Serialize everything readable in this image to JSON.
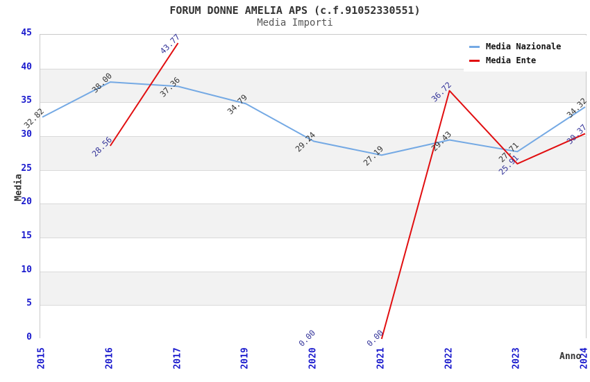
{
  "header": {
    "title": "FORUM DONNE AMELIA APS (c.f.91052330551)",
    "subtitle": "Media Importi"
  },
  "chart_data": {
    "type": "line",
    "title": "FORUM DONNE AMELIA APS (c.f.91052330551)",
    "subtitle": "Media Importi",
    "xlabel": "Anno",
    "ylabel": "Media",
    "ylim": [
      0,
      45
    ],
    "y_ticks": [
      0,
      5,
      10,
      15,
      20,
      25,
      30,
      35,
      40,
      45
    ],
    "grid": "horizontal gridlines with alternating shaded bands",
    "legend_position": "top-right inside plot",
    "categories": [
      "2015",
      "2016",
      "2017",
      "2019",
      "2020",
      "2021",
      "2022",
      "2023",
      "2024"
    ],
    "series": [
      {
        "name": "Media Nazionale",
        "color": "#74a9e4",
        "label_color": "#333333",
        "values": [
          32.82,
          38.0,
          37.36,
          34.79,
          29.24,
          27.19,
          29.43,
          27.71,
          34.32
        ]
      },
      {
        "name": "Media Ente",
        "color": "#e10e10",
        "label_color": "#333399",
        "values": [
          null,
          28.56,
          43.77,
          null,
          0.0,
          0.0,
          36.72,
          25.91,
          30.37
        ],
        "line_breaks_after": [
          "2020"
        ]
      }
    ]
  },
  "axes": {
    "tick_color": "#1a1acd",
    "band_color": "#f2f2f2",
    "grid_color": "#d9d9d9"
  }
}
